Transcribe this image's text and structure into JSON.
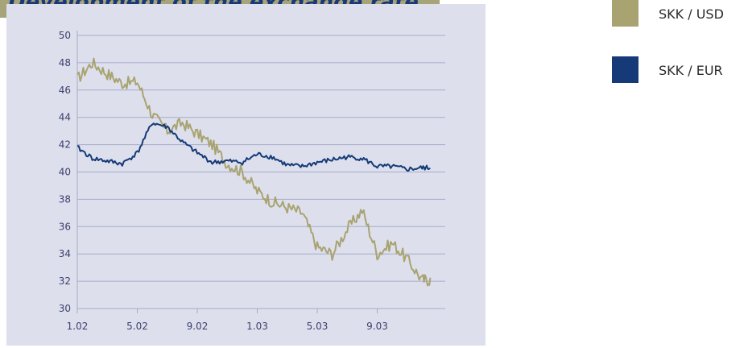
{
  "banner": {
    "title": "Development of the exchange rate"
  },
  "colors": {
    "usd": "#a9a371",
    "eur": "#163a78",
    "grid": "#a6aac8",
    "axis_text": "#3a3f6e",
    "banner": "#a7a479"
  },
  "legend": {
    "items": [
      {
        "label": "SKK / USD",
        "color": "#a9a371"
      },
      {
        "label": "SKK / EUR",
        "color": "#163a78"
      }
    ]
  },
  "chart_data": {
    "type": "line",
    "title": "",
    "xlabel": "",
    "ylabel": "",
    "ylim": [
      30,
      50
    ],
    "y_ticks": [
      30,
      32,
      34,
      36,
      38,
      40,
      42,
      44,
      46,
      48,
      50
    ],
    "x_ticks": [
      "1.02",
      "5.02",
      "9.02",
      "1.03",
      "5.03",
      "9.03"
    ],
    "x_range": [
      "2002-01",
      "2003-12"
    ],
    "grid": true,
    "legend_position": "right",
    "series": [
      {
        "name": "SKK / USD",
        "color": "#a9a371",
        "x": [
          "2002-01",
          "2002-02",
          "2002-03",
          "2002-04",
          "2002-05",
          "2002-06",
          "2002-07",
          "2002-08",
          "2002-09",
          "2002-10",
          "2002-11",
          "2002-12",
          "2003-01",
          "2003-02",
          "2003-03",
          "2003-04",
          "2003-05",
          "2003-06",
          "2003-07",
          "2003-08",
          "2003-09",
          "2003-10",
          "2003-11",
          "2003-12"
        ],
        "values": [
          46.8,
          48.0,
          47.2,
          46.5,
          46.6,
          44.2,
          43.0,
          43.6,
          42.8,
          42.0,
          40.6,
          40.0,
          38.6,
          37.8,
          37.4,
          37.0,
          34.5,
          34.0,
          35.8,
          37.2,
          34.0,
          34.8,
          33.6,
          32.1
        ]
      },
      {
        "name": "SKK / EUR",
        "color": "#163a78",
        "x": [
          "2002-01",
          "2002-02",
          "2002-03",
          "2002-04",
          "2002-05",
          "2002-06",
          "2002-07",
          "2002-08",
          "2002-09",
          "2002-10",
          "2002-11",
          "2002-12",
          "2003-01",
          "2003-02",
          "2003-03",
          "2003-04",
          "2003-05",
          "2003-06",
          "2003-07",
          "2003-08",
          "2003-09",
          "2003-10",
          "2003-11",
          "2003-12"
        ],
        "values": [
          41.8,
          41.0,
          40.8,
          40.6,
          41.4,
          43.6,
          43.3,
          42.2,
          41.4,
          40.7,
          40.8,
          40.7,
          41.3,
          41.1,
          40.5,
          40.4,
          40.7,
          40.9,
          41.1,
          41.0,
          40.4,
          40.4,
          40.2,
          40.3
        ]
      }
    ]
  }
}
